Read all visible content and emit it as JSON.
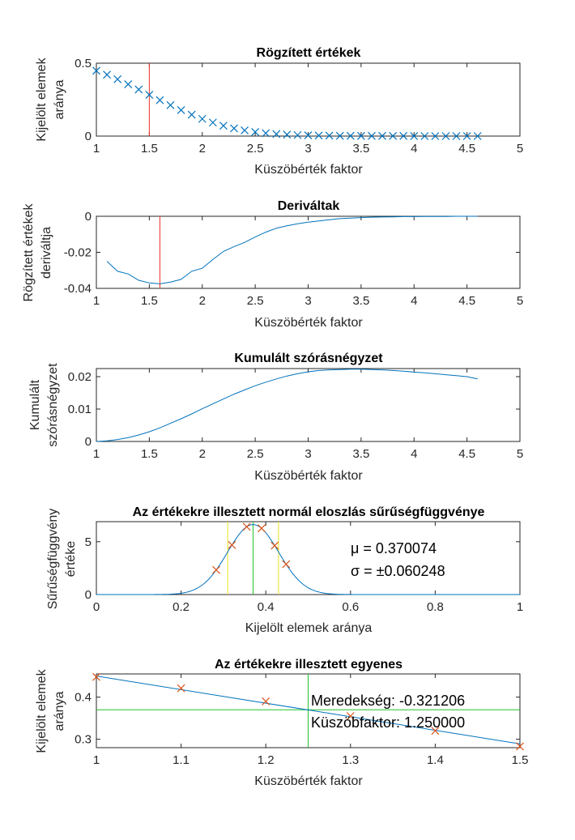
{
  "colors": {
    "blue": "#0072bd",
    "red": "#d95319",
    "vline": "#e8322a",
    "green": "#22c32c",
    "yellow": "#e8e41e",
    "axis": "#262626"
  },
  "chart_data": [
    {
      "type": "scatter",
      "title": "Rögzített értékek",
      "xlabel": "Küszöbérték faktor",
      "ylabel": [
        "Kijelölt elemek",
        "aránya"
      ],
      "xlim": [
        1,
        5
      ],
      "ylim": [
        0,
        0.5
      ],
      "xticks": [
        "1",
        "1.5",
        "2",
        "2.5",
        "3",
        "3.5",
        "4",
        "4.5",
        "5"
      ],
      "yticks": [
        "0",
        "0.5"
      ],
      "marker": "x",
      "vline": 1.5,
      "x": [
        1.0,
        1.1,
        1.2,
        1.3,
        1.4,
        1.5,
        1.6,
        1.7,
        1.8,
        1.9,
        2.0,
        2.1,
        2.2,
        2.3,
        2.4,
        2.5,
        2.6,
        2.7,
        2.8,
        2.9,
        3.0,
        3.1,
        3.2,
        3.3,
        3.4,
        3.5,
        3.6,
        3.7,
        3.8,
        3.9,
        4.0,
        4.1,
        4.2,
        4.3,
        4.4,
        4.5,
        4.6
      ],
      "y": [
        0.448,
        0.421,
        0.39,
        0.355,
        0.32,
        0.283,
        0.246,
        0.212,
        0.178,
        0.147,
        0.118,
        0.093,
        0.071,
        0.053,
        0.039,
        0.028,
        0.02,
        0.014,
        0.01,
        0.007,
        0.005,
        0.004,
        0.003,
        0.002,
        0.002,
        0.001,
        0.001,
        0.001,
        0.001,
        0.001,
        0.0,
        0.0,
        0.0,
        0.0,
        0.0,
        0.0,
        0.0
      ]
    },
    {
      "type": "line",
      "title": "Deriváltak",
      "xlabel": "Küszöbérték faktor",
      "ylabel": [
        "Rögzített értékek",
        "deriváltja"
      ],
      "xlim": [
        1,
        5
      ],
      "ylim": [
        -0.04,
        0
      ],
      "xticks": [
        "1",
        "1.5",
        "2",
        "2.5",
        "3",
        "3.5",
        "4",
        "4.5",
        "5"
      ],
      "yticks": [
        "0",
        "-0.02",
        "-0.04"
      ],
      "vline": 1.6,
      "x": [
        1.1,
        1.2,
        1.3,
        1.4,
        1.5,
        1.6,
        1.7,
        1.8,
        1.9,
        2.0,
        2.1,
        2.2,
        2.3,
        2.4,
        2.5,
        2.6,
        2.7,
        2.8,
        2.9,
        3.0,
        3.1,
        3.2,
        3.3,
        3.4,
        3.5,
        3.6,
        3.7,
        3.8,
        3.9,
        4.0,
        4.1,
        4.2,
        4.3,
        4.4,
        4.5,
        4.6
      ],
      "y": [
        -0.025,
        -0.0305,
        -0.032,
        -0.0355,
        -0.037,
        -0.0375,
        -0.0365,
        -0.035,
        -0.0305,
        -0.0288,
        -0.024,
        -0.0195,
        -0.0168,
        -0.0145,
        -0.0115,
        -0.0088,
        -0.0066,
        -0.0053,
        -0.0042,
        -0.0033,
        -0.0026,
        -0.0019,
        -0.0013,
        -0.001,
        -0.0007,
        -0.0005,
        -0.0004,
        -0.0003,
        -0.0002,
        -0.0002,
        -0.0001,
        -0.0001,
        -0.0001,
        0.0,
        0.0,
        0.0
      ]
    },
    {
      "type": "line",
      "title": "Kumulált szórásnégyzet",
      "xlabel": "Küszöbérték faktor",
      "ylabel": [
        "Kumulált",
        "szórásnégyzet"
      ],
      "xlim": [
        1,
        5
      ],
      "ylim": [
        0,
        0.0225
      ],
      "xticks": [
        "1",
        "1.5",
        "2",
        "2.5",
        "3",
        "3.5",
        "4",
        "4.5",
        "5"
      ],
      "yticks": [
        "0",
        "0.01",
        "0.02"
      ],
      "x": [
        1.0,
        1.1,
        1.2,
        1.3,
        1.4,
        1.5,
        1.6,
        1.7,
        1.8,
        1.9,
        2.0,
        2.1,
        2.2,
        2.3,
        2.4,
        2.5,
        2.6,
        2.7,
        2.8,
        2.9,
        3.0,
        3.1,
        3.2,
        3.3,
        3.4,
        3.5,
        3.6,
        3.7,
        3.8,
        3.9,
        4.0,
        4.1,
        4.2,
        4.3,
        4.4,
        4.5,
        4.6
      ],
      "y": [
        0.0,
        0.0002,
        0.0006,
        0.0012,
        0.002,
        0.003,
        0.0042,
        0.0056,
        0.007,
        0.0085,
        0.0101,
        0.0116,
        0.0131,
        0.0146,
        0.0159,
        0.0172,
        0.0183,
        0.0193,
        0.0202,
        0.0209,
        0.0215,
        0.0219,
        0.0221,
        0.0222,
        0.0223,
        0.0223,
        0.0222,
        0.0221,
        0.0219,
        0.0217,
        0.0214,
        0.0212,
        0.0209,
        0.0206,
        0.0203,
        0.02,
        0.0193
      ]
    },
    {
      "type": "line",
      "title": "Az értékekre illesztett normál eloszlás sűrűségfüggvénye",
      "xlabel": "Kijelölt elemek aránya",
      "ylabel": [
        "Sűrűségfüggvény",
        "értéke"
      ],
      "xlim": [
        0,
        1
      ],
      "ylim": [
        0,
        6.9
      ],
      "xticks": [
        "0",
        "0.2",
        "0.4",
        "0.6",
        "0.8",
        "1"
      ],
      "yticks": [
        "0",
        "5"
      ],
      "mu": 0.370074,
      "sigma": 0.060248,
      "green_line": 0.37,
      "yellow_lines": [
        0.31,
        0.43
      ],
      "markers_x": [
        0.283,
        0.32,
        0.355,
        0.39,
        0.421,
        0.448
      ],
      "annotations": [
        "μ = 0.370074",
        "σ = ±0.060248"
      ]
    },
    {
      "type": "line",
      "title": "Az értékekre illesztett egyenes",
      "xlabel": "Küszöbérték faktor",
      "ylabel": [
        "Kijelölt elemek",
        "aránya"
      ],
      "xlim": [
        1,
        1.5
      ],
      "ylim": [
        0.28,
        0.455
      ],
      "xticks": [
        "1",
        "1.1",
        "1.2",
        "1.3",
        "1.4",
        "1.5"
      ],
      "yticks": [
        "0.3",
        "0.4"
      ],
      "points_x": [
        1.0,
        1.1,
        1.2,
        1.3,
        1.4,
        1.5
      ],
      "points_y": [
        0.448,
        0.421,
        0.39,
        0.355,
        0.32,
        0.283
      ],
      "fit_x": [
        1.0,
        1.5
      ],
      "fit_y": [
        0.45,
        0.289
      ],
      "green_h": 0.37,
      "green_v": 1.25,
      "annotations": [
        "Meredekség: -0.321206",
        "Küszöbfaktor: 1.250000"
      ]
    }
  ]
}
